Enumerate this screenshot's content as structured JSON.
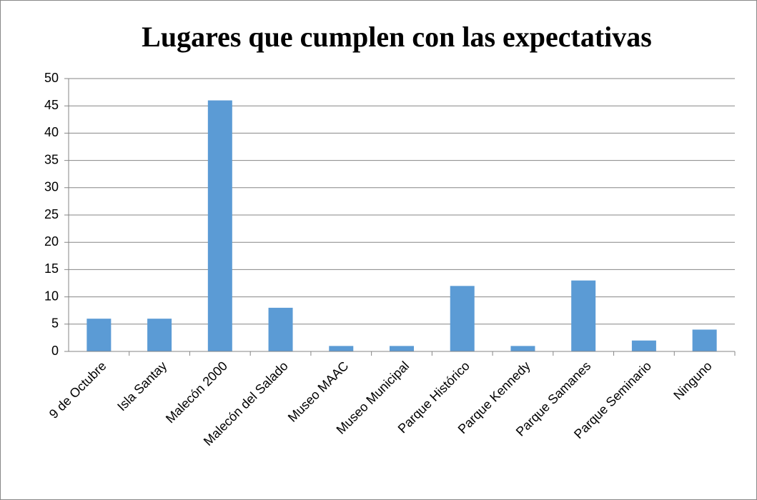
{
  "chart_data": {
    "type": "bar",
    "title": "Lugares que cumplen con las expectativas",
    "categories": [
      "9 de Octubre",
      "Isla Santay",
      "Malecón 2000",
      "Malecón del Salado",
      "Museo MAAC",
      "Museo Municipal",
      "Parque Histórico",
      "Parque Kennedy",
      "Parque Samanes",
      "Parque Seminario",
      "Ninguno"
    ],
    "values": [
      6,
      6,
      46,
      8,
      1,
      1,
      12,
      1,
      13,
      2,
      4
    ],
    "color": "#5b9bd5",
    "ylim": [
      0,
      50
    ],
    "yticks": [
      0,
      5,
      10,
      15,
      20,
      25,
      30,
      35,
      40,
      45,
      50
    ],
    "grid": true
  }
}
